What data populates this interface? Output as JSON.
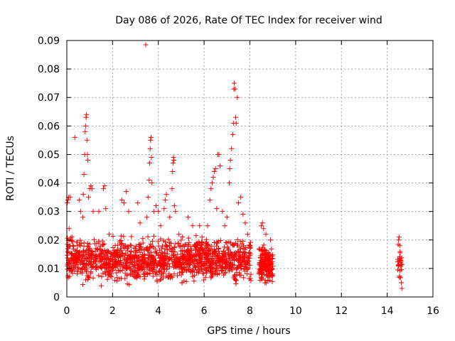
{
  "chart_data": {
    "type": "scatter",
    "title": "Day 086 of 2026, Rate Of TEC Index for receiver wind",
    "xlabel": "GPS time / hours",
    "ylabel": "ROTI / TECUs",
    "xlim": [
      0,
      16
    ],
    "ylim": [
      0,
      0.09
    ],
    "x_ticks": [
      0,
      2,
      4,
      6,
      8,
      10,
      12,
      14,
      16
    ],
    "x_tick_labels": [
      "0",
      "2",
      "4",
      "6",
      "8",
      "10",
      "12",
      "14",
      "16"
    ],
    "y_ticks": [
      0,
      0.01,
      0.02,
      0.03,
      0.04,
      0.05,
      0.06,
      0.07,
      0.08,
      0.09
    ],
    "y_tick_labels": [
      "0",
      "0.01",
      "0.02",
      "0.03",
      "0.04",
      "0.05",
      "0.06",
      "0.07",
      "0.08",
      "0.09"
    ],
    "grid": true,
    "marker": "+",
    "marker_color": "#ff0000",
    "series": [
      {
        "name": "ROTI",
        "points": [
          [
            0.02,
            0.033
          ],
          [
            0.05,
            0.034
          ],
          [
            0.08,
            0.035
          ],
          [
            0.1,
            0.024
          ],
          [
            0.12,
            0.02
          ],
          [
            0.15,
            0.035
          ],
          [
            0.35,
            0.056
          ],
          [
            0.55,
            0.034
          ],
          [
            0.6,
            0.03
          ],
          [
            0.7,
            0.028
          ],
          [
            0.72,
            0.036
          ],
          [
            0.75,
            0.043
          ],
          [
            0.78,
            0.05
          ],
          [
            0.8,
            0.058
          ],
          [
            0.82,
            0.06
          ],
          [
            0.84,
            0.063
          ],
          [
            0.86,
            0.064
          ],
          [
            0.88,
            0.055
          ],
          [
            0.9,
            0.05
          ],
          [
            0.92,
            0.048
          ],
          [
            0.95,
            0.035
          ],
          [
            1.0,
            0.038
          ],
          [
            1.05,
            0.039
          ],
          [
            1.1,
            0.038
          ],
          [
            1.15,
            0.03
          ],
          [
            1.4,
            0.03
          ],
          [
            1.6,
            0.038
          ],
          [
            1.65,
            0.039
          ],
          [
            1.7,
            0.031
          ],
          [
            1.85,
            0.022
          ],
          [
            2.4,
            0.034
          ],
          [
            2.5,
            0.033
          ],
          [
            2.6,
            0.037
          ],
          [
            2.7,
            0.03
          ],
          [
            3.1,
            0.033
          ],
          [
            3.2,
            0.026
          ],
          [
            3.45,
            0.0885
          ],
          [
            3.5,
            0.028
          ],
          [
            3.55,
            0.035
          ],
          [
            3.6,
            0.041
          ],
          [
            3.62,
            0.047
          ],
          [
            3.64,
            0.052
          ],
          [
            3.66,
            0.055
          ],
          [
            3.68,
            0.056
          ],
          [
            3.7,
            0.049
          ],
          [
            3.72,
            0.04
          ],
          [
            3.8,
            0.03
          ],
          [
            3.9,
            0.032
          ],
          [
            4.0,
            0.03
          ],
          [
            4.1,
            0.025
          ],
          [
            4.25,
            0.031
          ],
          [
            4.3,
            0.034
          ],
          [
            4.35,
            0.036
          ],
          [
            4.5,
            0.028
          ],
          [
            4.6,
            0.038
          ],
          [
            4.62,
            0.044
          ],
          [
            4.64,
            0.047
          ],
          [
            4.66,
            0.049
          ],
          [
            4.68,
            0.048
          ],
          [
            4.7,
            0.032
          ],
          [
            4.75,
            0.03
          ],
          [
            4.9,
            0.022
          ],
          [
            5.3,
            0.028
          ],
          [
            5.5,
            0.025
          ],
          [
            5.8,
            0.025
          ],
          [
            6.15,
            0.025
          ],
          [
            6.25,
            0.034
          ],
          [
            6.3,
            0.038
          ],
          [
            6.35,
            0.04
          ],
          [
            6.4,
            0.042
          ],
          [
            6.45,
            0.044
          ],
          [
            6.5,
            0.045
          ],
          [
            6.55,
            0.031
          ],
          [
            6.6,
            0.05
          ],
          [
            6.65,
            0.05
          ],
          [
            6.7,
            0.046
          ],
          [
            6.8,
            0.03
          ],
          [
            6.9,
            0.025
          ],
          [
            7.0,
            0.028
          ],
          [
            7.1,
            0.04
          ],
          [
            7.12,
            0.045
          ],
          [
            7.15,
            0.048
          ],
          [
            7.2,
            0.052
          ],
          [
            7.25,
            0.057
          ],
          [
            7.28,
            0.061
          ],
          [
            7.3,
            0.073
          ],
          [
            7.32,
            0.075
          ],
          [
            7.35,
            0.073
          ],
          [
            7.38,
            0.063
          ],
          [
            7.4,
            0.061
          ],
          [
            7.45,
            0.07
          ],
          [
            7.5,
            0.033
          ],
          [
            7.6,
            0.035
          ],
          [
            7.7,
            0.029
          ],
          [
            7.8,
            0.026
          ],
          [
            7.9,
            0.022
          ],
          [
            8.0,
            0.018
          ],
          [
            8.5,
            0.025
          ],
          [
            8.55,
            0.026
          ],
          [
            8.6,
            0.024
          ],
          [
            8.7,
            0.022
          ],
          [
            8.9,
            0.02
          ],
          [
            14.5,
            0.02
          ],
          [
            14.52,
            0.021
          ],
          [
            14.55,
            0.018
          ],
          [
            14.6,
            0.012
          ],
          [
            14.62,
            0.005
          ],
          [
            14.64,
            0.003
          ]
        ]
      }
    ],
    "clusters": [
      {
        "x": [
          0.0,
          8.05
        ],
        "y": [
          0.003,
          0.023
        ],
        "density": 1400
      },
      {
        "x": [
          8.4,
          9.0
        ],
        "y": [
          0.003,
          0.02
        ],
        "density": 180
      },
      {
        "x": [
          14.45,
          14.65
        ],
        "y": [
          0.004,
          0.02
        ],
        "density": 25
      }
    ]
  }
}
